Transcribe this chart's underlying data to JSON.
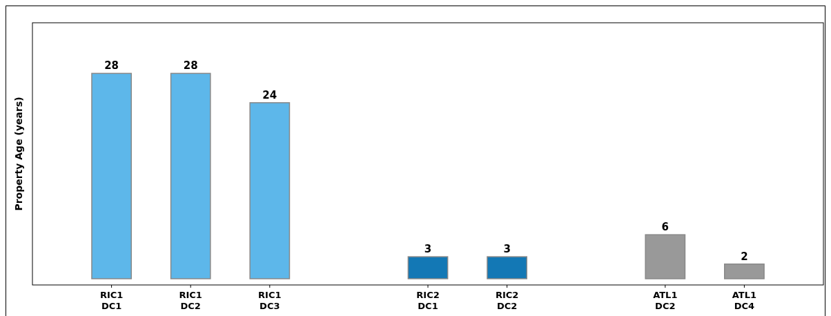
{
  "chart_data": {
    "type": "bar",
    "ylabel": "Property Age (years)",
    "categories": [
      "RIC1\nDC1",
      "RIC1\nDC2",
      "RIC1\nDC3",
      null,
      "RIC2\nDC1",
      "RIC2\nDC2",
      null,
      "ATL1\nDC2",
      "ATL1\nDC4"
    ],
    "values": [
      28,
      28,
      24,
      null,
      3,
      3,
      null,
      6,
      2
    ],
    "colors": [
      "#5db7ea",
      "#5db7ea",
      "#5db7ea",
      null,
      "#1378b5",
      "#1378b5",
      null,
      "#999999",
      "#999999"
    ],
    "ylim": [
      -0.85,
      34.9
    ],
    "data_labels": true
  }
}
